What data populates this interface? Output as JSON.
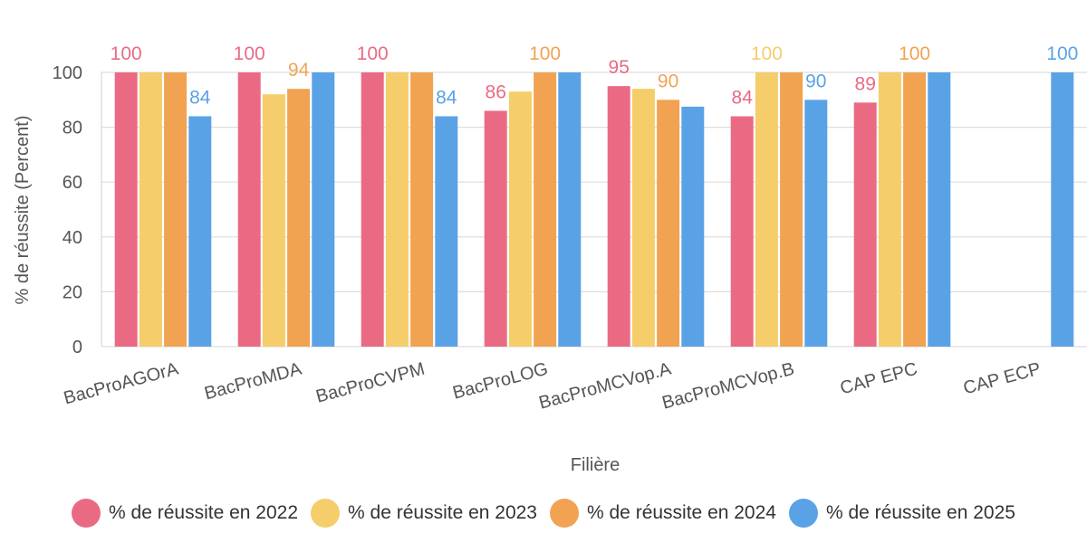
{
  "colors": {
    "series": [
      "#ea6a84",
      "#f5cd6a",
      "#f1a352",
      "#5aa2e6"
    ],
    "grid": "#dedede",
    "axis_text": "#555555"
  },
  "chart_data": {
    "type": "bar",
    "title": "",
    "xlabel": "Filière",
    "ylabel": "% de réussite (Percent)",
    "ylim": [
      0,
      100
    ],
    "yticks": [
      0,
      20,
      40,
      60,
      80,
      100
    ],
    "grid": true,
    "legend_position": "bottom",
    "categories": [
      "BacProAGOrA",
      "BacProMDA",
      "BacProCVPM",
      "BacProLOG",
      "BacProMCVop.A",
      "BacProMCVop.B",
      "CAP EPC",
      "CAP ECP"
    ],
    "series": [
      {
        "name": "% de réussite en 2022",
        "values": [
          100,
          100,
          100,
          86,
          95,
          84,
          89,
          null
        ],
        "labels": [
          "100",
          "100",
          "100",
          "86",
          "95",
          "84",
          "89",
          ""
        ]
      },
      {
        "name": "% de réussite en 2023",
        "values": [
          100,
          92,
          100,
          93,
          94,
          100,
          100,
          null
        ],
        "labels": [
          "",
          "",
          "",
          "",
          "",
          "100",
          "",
          ""
        ]
      },
      {
        "name": "% de réussite en 2024",
        "values": [
          100,
          94,
          100,
          100,
          90,
          100,
          100,
          null
        ],
        "labels": [
          "",
          "94",
          "",
          "100",
          "90",
          "",
          "100",
          ""
        ]
      },
      {
        "name": "% de réussite en 2025",
        "values": [
          84,
          100,
          84,
          100,
          87.5,
          90,
          100,
          100
        ],
        "labels": [
          "84",
          "",
          "84",
          "",
          "",
          "90",
          "",
          "100"
        ]
      }
    ]
  }
}
